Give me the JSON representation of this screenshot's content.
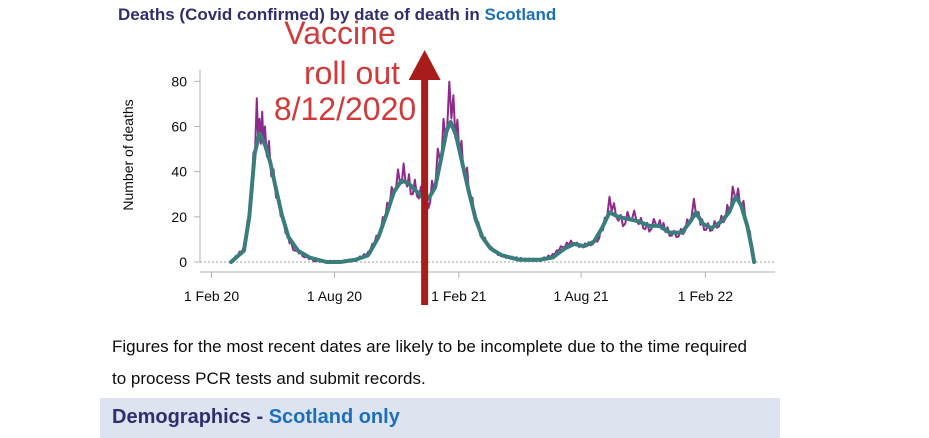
{
  "header": {
    "title_prefix": "Deaths (Covid confirmed) by date of death in ",
    "title_place": "Scotland"
  },
  "annotation": {
    "lines": [
      "Vaccine",
      "roll out",
      "8/12/2020"
    ],
    "color": "#d03a3a",
    "arrow_color": "#a81c1c"
  },
  "caption": {
    "line1": "Figures for the most recent dates are likely to be incomplete due to the time required",
    "line2": "to process PCR tests and submit records."
  },
  "demographics": {
    "label": "Demographics - ",
    "place": "Scotland only"
  },
  "colors": {
    "raw_series": "#8e2a8c",
    "avg_series": "#3a7d7d",
    "axis": "#b1b4b6",
    "text": "#0b0c0c"
  },
  "chart_data": {
    "type": "line",
    "title": "Deaths (Covid confirmed) by date of death in Scotland",
    "xlabel": "",
    "ylabel": "Number of deaths",
    "ylim": [
      0,
      85
    ],
    "xlim": [
      "2020-01-15",
      "2022-05-15"
    ],
    "yticks": [
      0,
      20,
      40,
      60,
      80
    ],
    "xticks": [
      {
        "date": "2020-02-01",
        "label": "1 Feb 20"
      },
      {
        "date": "2020-08-01",
        "label": "1 Aug 20"
      },
      {
        "date": "2021-02-01",
        "label": "1 Feb 21"
      },
      {
        "date": "2021-08-01",
        "label": "1 Aug 21"
      },
      {
        "date": "2022-02-01",
        "label": "1 Feb 22"
      }
    ],
    "annotation_date": "2020-12-08",
    "series": [
      {
        "style": "daily",
        "points": [
          [
            "2020-03-01",
            0
          ],
          [
            "2020-03-20",
            6
          ],
          [
            "2020-03-28",
            22
          ],
          [
            "2020-04-03",
            45
          ],
          [
            "2020-04-08",
            65
          ],
          [
            "2020-04-12",
            57
          ],
          [
            "2020-04-16",
            62
          ],
          [
            "2020-04-20",
            54
          ],
          [
            "2020-04-26",
            48
          ],
          [
            "2020-05-03",
            38
          ],
          [
            "2020-05-10",
            26
          ],
          [
            "2020-05-17",
            18
          ],
          [
            "2020-05-24",
            11
          ],
          [
            "2020-06-01",
            6
          ],
          [
            "2020-06-15",
            3
          ],
          [
            "2020-07-01",
            1
          ],
          [
            "2020-07-20",
            0
          ],
          [
            "2020-08-10",
            0
          ],
          [
            "2020-09-01",
            1
          ],
          [
            "2020-09-20",
            4
          ],
          [
            "2020-10-05",
            12
          ],
          [
            "2020-10-18",
            24
          ],
          [
            "2020-10-28",
            34
          ],
          [
            "2020-11-06",
            38
          ],
          [
            "2020-11-14",
            40
          ],
          [
            "2020-11-22",
            34
          ],
          [
            "2020-12-01",
            32
          ],
          [
            "2020-12-10",
            29
          ],
          [
            "2020-12-18",
            27
          ],
          [
            "2020-12-26",
            35
          ],
          [
            "2021-01-04",
            50
          ],
          [
            "2021-01-12",
            63
          ],
          [
            "2021-01-18",
            72
          ],
          [
            "2021-01-24",
            66
          ],
          [
            "2021-01-30",
            58
          ],
          [
            "2021-02-08",
            44
          ],
          [
            "2021-02-16",
            34
          ],
          [
            "2021-02-24",
            22
          ],
          [
            "2021-03-05",
            13
          ],
          [
            "2021-03-15",
            8
          ],
          [
            "2021-03-28",
            4
          ],
          [
            "2021-04-15",
            2
          ],
          [
            "2021-05-10",
            1
          ],
          [
            "2021-06-01",
            1
          ],
          [
            "2021-06-20",
            3
          ],
          [
            "2021-07-05",
            7
          ],
          [
            "2021-07-20",
            9
          ],
          [
            "2021-08-01",
            7
          ],
          [
            "2021-08-15",
            8
          ],
          [
            "2021-08-25",
            10
          ],
          [
            "2021-09-05",
            18
          ],
          [
            "2021-09-12",
            26
          ],
          [
            "2021-09-22",
            22
          ],
          [
            "2021-10-02",
            18
          ],
          [
            "2021-10-12",
            21
          ],
          [
            "2021-10-22",
            20
          ],
          [
            "2021-11-01",
            17
          ],
          [
            "2021-11-10",
            15
          ],
          [
            "2021-11-20",
            18
          ],
          [
            "2021-12-01",
            16
          ],
          [
            "2021-12-10",
            13
          ],
          [
            "2021-12-20",
            12
          ],
          [
            "2021-12-30",
            14
          ],
          [
            "2022-01-08",
            19
          ],
          [
            "2022-01-15",
            25
          ],
          [
            "2022-01-22",
            20
          ],
          [
            "2022-01-30",
            16
          ],
          [
            "2022-02-08",
            15
          ],
          [
            "2022-02-18",
            17
          ],
          [
            "2022-02-28",
            20
          ],
          [
            "2022-03-08",
            24
          ],
          [
            "2022-03-16",
            33
          ],
          [
            "2022-03-24",
            29
          ],
          [
            "2022-04-01",
            22
          ],
          [
            "2022-04-08",
            12
          ],
          [
            "2022-04-12",
            3
          ],
          [
            "2022-04-14",
            0
          ]
        ]
      },
      {
        "style": "rolling_average",
        "points": [
          [
            "2020-03-01",
            0
          ],
          [
            "2020-03-20",
            5
          ],
          [
            "2020-03-28",
            20
          ],
          [
            "2020-04-05",
            48
          ],
          [
            "2020-04-12",
            57
          ],
          [
            "2020-04-20",
            52
          ],
          [
            "2020-04-28",
            44
          ],
          [
            "2020-05-06",
            33
          ],
          [
            "2020-05-15",
            21
          ],
          [
            "2020-05-25",
            11
          ],
          [
            "2020-06-08",
            5
          ],
          [
            "2020-06-25",
            2
          ],
          [
            "2020-07-20",
            0
          ],
          [
            "2020-08-10",
            0
          ],
          [
            "2020-09-01",
            1
          ],
          [
            "2020-09-20",
            3
          ],
          [
            "2020-10-05",
            11
          ],
          [
            "2020-10-18",
            22
          ],
          [
            "2020-10-28",
            31
          ],
          [
            "2020-11-08",
            36
          ],
          [
            "2020-11-18",
            35
          ],
          [
            "2020-11-28",
            32
          ],
          [
            "2020-12-08",
            29
          ],
          [
            "2020-12-18",
            28
          ],
          [
            "2020-12-28",
            33
          ],
          [
            "2021-01-06",
            46
          ],
          [
            "2021-01-14",
            58
          ],
          [
            "2021-01-20",
            62
          ],
          [
            "2021-01-28",
            56
          ],
          [
            "2021-02-06",
            44
          ],
          [
            "2021-02-16",
            31
          ],
          [
            "2021-02-26",
            19
          ],
          [
            "2021-03-08",
            11
          ],
          [
            "2021-03-20",
            6
          ],
          [
            "2021-04-05",
            3
          ],
          [
            "2021-05-01",
            1
          ],
          [
            "2021-06-01",
            1
          ],
          [
            "2021-06-20",
            2
          ],
          [
            "2021-07-08",
            6
          ],
          [
            "2021-07-22",
            8
          ],
          [
            "2021-08-05",
            7
          ],
          [
            "2021-08-20",
            9
          ],
          [
            "2021-09-01",
            15
          ],
          [
            "2021-09-12",
            22
          ],
          [
            "2021-09-25",
            20
          ],
          [
            "2021-10-10",
            19
          ],
          [
            "2021-10-25",
            18
          ],
          [
            "2021-11-10",
            16
          ],
          [
            "2021-11-25",
            16
          ],
          [
            "2021-12-10",
            13
          ],
          [
            "2021-12-28",
            13
          ],
          [
            "2022-01-10",
            18
          ],
          [
            "2022-01-18",
            22
          ],
          [
            "2022-01-28",
            17
          ],
          [
            "2022-02-10",
            15
          ],
          [
            "2022-02-25",
            18
          ],
          [
            "2022-03-08",
            22
          ],
          [
            "2022-03-18",
            29
          ],
          [
            "2022-03-26",
            25
          ],
          [
            "2022-04-04",
            16
          ],
          [
            "2022-04-10",
            7
          ],
          [
            "2022-04-14",
            0
          ]
        ]
      }
    ]
  }
}
